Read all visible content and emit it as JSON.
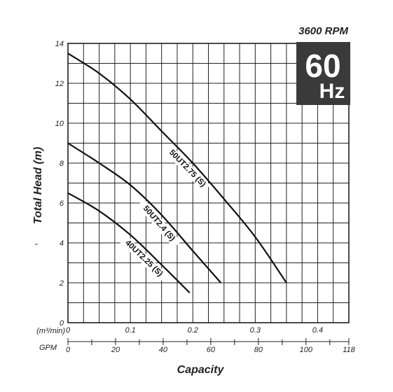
{
  "chart_data": {
    "type": "line",
    "title": "",
    "speed_label": "3600 RPM",
    "badge": {
      "value": "60",
      "unit": "Hz"
    },
    "xlabel": "Capacity",
    "ylabel": "Total Head (m)",
    "x_unit_primary": "(m³/min)",
    "x_unit_secondary": "GPM",
    "xlim": [
      0,
      0.45
    ],
    "ylim": [
      0,
      14
    ],
    "x_ticks": [
      {
        "value": 0,
        "label": "0"
      },
      {
        "value": 0.1,
        "label": "0.1"
      },
      {
        "value": 0.2,
        "label": "0.2"
      },
      {
        "value": 0.3,
        "label": "0.3"
      },
      {
        "value": 0.4,
        "label": "0.4"
      }
    ],
    "gpm_ticks": [
      {
        "value": 0,
        "label": "0"
      },
      {
        "value": 20,
        "label": "20"
      },
      {
        "value": 40,
        "label": "40"
      },
      {
        "value": 60,
        "label": "60"
      },
      {
        "value": 80,
        "label": "80"
      },
      {
        "value": 100,
        "label": "100"
      },
      {
        "value": 118,
        "label": "118"
      }
    ],
    "y_ticks": [
      {
        "value": 0,
        "label": "0"
      },
      {
        "value": 2,
        "label": "2"
      },
      {
        "value": 4,
        "label": "4"
      },
      {
        "value": 6,
        "label": "6"
      },
      {
        "value": 8,
        "label": "8"
      },
      {
        "value": 10,
        "label": "10"
      },
      {
        "value": 12,
        "label": "12"
      },
      {
        "value": 14,
        "label": "14"
      }
    ],
    "grid": true,
    "series": [
      {
        "name": "50UT2.75 (S)",
        "points": [
          [
            0,
            13.5
          ],
          [
            0.05,
            12.5
          ],
          [
            0.1,
            11.2
          ],
          [
            0.15,
            9.6
          ],
          [
            0.2,
            8.0
          ],
          [
            0.25,
            6.2
          ],
          [
            0.3,
            4.3
          ],
          [
            0.35,
            2.0
          ]
        ]
      },
      {
        "name": "50UT2.4 (S)",
        "points": [
          [
            0,
            9.0
          ],
          [
            0.05,
            8.0
          ],
          [
            0.1,
            6.9
          ],
          [
            0.15,
            5.4
          ],
          [
            0.2,
            3.6
          ],
          [
            0.245,
            2.0
          ]
        ]
      },
      {
        "name": "40UT2.25 (S)",
        "points": [
          [
            0,
            6.5
          ],
          [
            0.05,
            5.6
          ],
          [
            0.1,
            4.4
          ],
          [
            0.15,
            2.9
          ],
          [
            0.195,
            1.5
          ]
        ]
      }
    ]
  }
}
